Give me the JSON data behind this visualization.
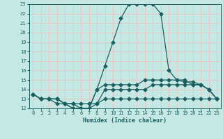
{
  "xlabel": "Humidex (Indice chaleur)",
  "xlim": [
    -0.5,
    23.5
  ],
  "ylim": [
    12,
    23
  ],
  "yticks": [
    12,
    13,
    14,
    15,
    16,
    17,
    18,
    19,
    20,
    21,
    22,
    23
  ],
  "xticks": [
    0,
    1,
    2,
    3,
    4,
    5,
    6,
    7,
    8,
    9,
    10,
    11,
    12,
    13,
    14,
    15,
    16,
    17,
    18,
    19,
    20,
    21,
    22,
    23
  ],
  "bg_color": "#c5e8e5",
  "grid_color": "#e8c8c8",
  "line_color": "#1a6060",
  "line1_x": [
    0,
    1,
    2,
    3,
    4,
    5,
    6,
    7,
    8,
    9,
    10,
    11,
    12,
    13,
    14,
    15,
    16,
    17,
    18,
    19,
    20,
    21,
    22,
    23
  ],
  "line1_y": [
    13.5,
    13.0,
    13.0,
    13.0,
    12.5,
    12.5,
    12.5,
    12.5,
    12.5,
    13.0,
    13.0,
    13.0,
    13.0,
    13.0,
    13.0,
    13.0,
    13.0,
    13.0,
    13.0,
    13.0,
    13.0,
    13.0,
    13.0,
    13.0
  ],
  "line2_x": [
    0,
    1,
    2,
    3,
    4,
    5,
    6,
    7,
    8,
    9,
    10,
    11,
    12,
    13,
    14,
    15,
    16,
    17,
    18,
    19,
    20,
    21,
    22,
    23
  ],
  "line2_y": [
    13.5,
    13.0,
    13.0,
    12.5,
    12.5,
    12.0,
    12.0,
    12.0,
    12.5,
    14.0,
    14.0,
    14.0,
    14.0,
    14.0,
    14.0,
    14.5,
    14.5,
    14.5,
    14.5,
    14.5,
    14.5,
    14.5,
    14.0,
    13.0
  ],
  "line3_x": [
    0,
    1,
    2,
    3,
    4,
    5,
    6,
    7,
    8,
    9,
    10,
    11,
    12,
    13,
    14,
    15,
    16,
    17,
    18,
    19,
    20,
    21,
    22,
    23
  ],
  "line3_y": [
    13.5,
    13.0,
    13.0,
    13.0,
    12.5,
    12.5,
    12.0,
    12.0,
    14.0,
    14.5,
    14.5,
    14.5,
    14.5,
    14.5,
    15.0,
    15.0,
    15.0,
    15.0,
    15.0,
    14.8,
    14.8,
    14.5,
    14.0,
    13.0
  ],
  "line4_x": [
    0,
    1,
    2,
    3,
    4,
    5,
    6,
    7,
    8,
    9,
    10,
    11,
    12,
    13,
    14,
    15,
    16,
    17,
    18,
    19,
    20,
    21,
    22,
    23
  ],
  "line4_y": [
    13.5,
    13.0,
    13.0,
    13.0,
    12.5,
    12.0,
    12.0,
    12.0,
    14.0,
    16.5,
    19.0,
    21.5,
    23.0,
    23.0,
    23.0,
    23.0,
    22.0,
    16.0,
    15.0,
    15.0,
    14.5,
    14.5,
    14.0,
    13.0
  ]
}
